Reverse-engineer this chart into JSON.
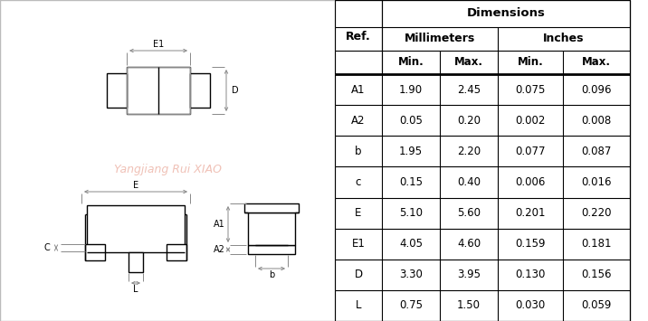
{
  "table": {
    "rows": [
      [
        "A1",
        "1.90",
        "2.45",
        "0.075",
        "0.096"
      ],
      [
        "A2",
        "0.05",
        "0.20",
        "0.002",
        "0.008"
      ],
      [
        "b",
        "1.95",
        "2.20",
        "0.077",
        "0.087"
      ],
      [
        "c",
        "0.15",
        "0.40",
        "0.006",
        "0.016"
      ],
      [
        "E",
        "5.10",
        "5.60",
        "0.201",
        "0.220"
      ],
      [
        "E1",
        "4.05",
        "4.60",
        "0.159",
        "0.181"
      ],
      [
        "D",
        "3.30",
        "3.95",
        "0.130",
        "0.156"
      ],
      [
        "L",
        "0.75",
        "1.50",
        "0.030",
        "0.059"
      ]
    ]
  },
  "watermark": "Yangjiang Rui XIAO",
  "fig_width": 7.16,
  "fig_height": 3.55,
  "dpi": 100
}
